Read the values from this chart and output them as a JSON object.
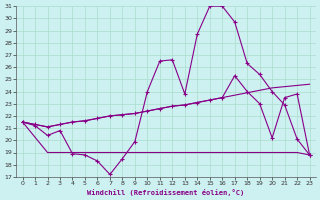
{
  "xlabel": "Windchill (Refroidissement éolien,°C)",
  "xlim": [
    -0.5,
    23.5
  ],
  "ylim": [
    17,
    31
  ],
  "yticks": [
    17,
    18,
    19,
    20,
    21,
    22,
    23,
    24,
    25,
    26,
    27,
    28,
    29,
    30,
    31
  ],
  "xticks": [
    0,
    1,
    2,
    3,
    4,
    5,
    6,
    7,
    8,
    9,
    10,
    11,
    12,
    13,
    14,
    15,
    16,
    17,
    18,
    19,
    20,
    21,
    22,
    23
  ],
  "bg_color": "#cdf0f0",
  "line_color": "#880088",
  "grid_color": "#aaddcc",
  "curve1_x": [
    0,
    1,
    2,
    3,
    4,
    5,
    6,
    7,
    8,
    9,
    10,
    11,
    12,
    13,
    14,
    15,
    16,
    17,
    18,
    19,
    20,
    21,
    22,
    23
  ],
  "curve1_y": [
    21.5,
    21.2,
    20.4,
    20.8,
    18.9,
    18.8,
    18.3,
    17.2,
    18.5,
    19.9,
    24.0,
    26.5,
    26.6,
    23.8,
    28.7,
    31.0,
    31.0,
    29.7,
    26.3,
    25.4,
    24.0,
    22.9,
    20.1,
    18.8
  ],
  "curve2_x": [
    0,
    1,
    2,
    3,
    4,
    5,
    6,
    7,
    8,
    9,
    10,
    11,
    12,
    13,
    14,
    15,
    16,
    17,
    18,
    19,
    20,
    21,
    22,
    23
  ],
  "curve2_y": [
    21.5,
    21.3,
    21.1,
    21.3,
    21.5,
    21.6,
    21.8,
    22.0,
    22.1,
    22.2,
    22.4,
    22.6,
    22.8,
    22.9,
    23.1,
    23.3,
    23.5,
    25.3,
    24.0,
    23.0,
    20.2,
    23.5,
    23.8,
    18.8
  ],
  "curve3_x": [
    0,
    1,
    2,
    3,
    4,
    5,
    6,
    7,
    8,
    9,
    10,
    11,
    12,
    13,
    14,
    15,
    16,
    17,
    18,
    19,
    20,
    21,
    22,
    23
  ],
  "curve3_y": [
    21.5,
    21.3,
    21.1,
    21.3,
    21.5,
    21.6,
    21.8,
    22.0,
    22.1,
    22.2,
    22.4,
    22.6,
    22.8,
    22.9,
    23.1,
    23.3,
    23.5,
    23.7,
    23.9,
    24.1,
    24.3,
    24.4,
    24.5,
    24.6
  ],
  "curve4_x": [
    0,
    2,
    3,
    4,
    5,
    6,
    7,
    8,
    9,
    10,
    11,
    12,
    13,
    14,
    15,
    16,
    17,
    18,
    19,
    20,
    21,
    22,
    23
  ],
  "curve4_y": [
    21.5,
    19.0,
    19.0,
    19.0,
    19.0,
    19.0,
    19.0,
    19.0,
    19.0,
    19.0,
    19.0,
    19.0,
    19.0,
    19.0,
    19.0,
    19.0,
    19.0,
    19.0,
    19.0,
    19.0,
    19.0,
    19.0,
    18.8
  ]
}
